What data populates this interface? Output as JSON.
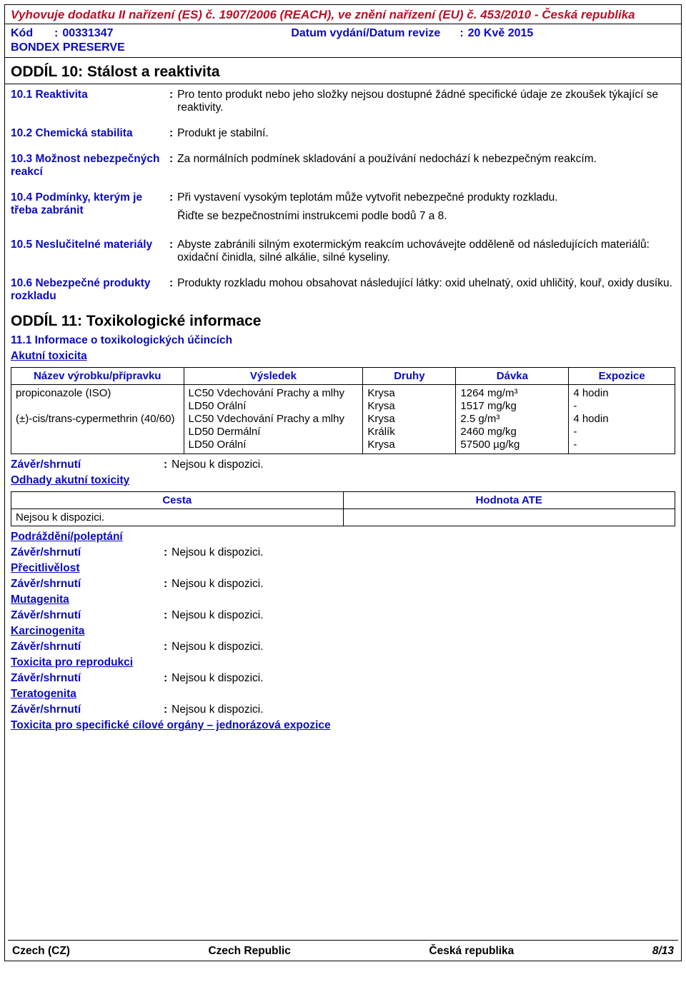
{
  "header": {
    "regulation": "Vyhovuje dodatku II nařízení (ES) č. 1907/2006 (REACH), ve znění nařízení (EU) č. 453/2010 - Česká republika",
    "code_label": "Kód",
    "code_value": "00331347",
    "date_label": "Datum vydání/Datum revize",
    "date_value": "20 Kvě 2015",
    "product": "BONDEX PRESERVE"
  },
  "section10": {
    "title": "ODDÍL 10: Stálost a reaktivita",
    "items": [
      {
        "label": "10.1 Reaktivita",
        "value": "Pro tento produkt nebo jeho složky nejsou dostupné žádné specifické údaje ze zkoušek týkající se reaktivity."
      },
      {
        "label": "10.2 Chemická stabilita",
        "value": "Produkt je stabilní."
      },
      {
        "label": "10.3 Možnost nebezpečných reakcí",
        "value": "Za normálních podmínek skladování a používání nedochází k nebezpečným reakcím."
      },
      {
        "label": "10.4 Podmínky, kterým je třeba zabránit",
        "value": "Při vystavení vysokým teplotám může vytvořit nebezpečné produkty rozkladu.",
        "value2": "Řiďte se bezpečnostními instrukcemi podle bodů 7 a 8."
      },
      {
        "label": "10.5 Neslučitelné materiály",
        "value": "Abyste zabránili silným exotermickým reakcím uchovávejte odděleně od následujících materiálů: oxidační činidla, silné alkálie, silné kyseliny."
      },
      {
        "label": "10.6 Nebezpečné produkty rozkladu",
        "value": "Produkty rozkladu mohou obsahovat následující látky: oxid uhelnatý, oxid uhličitý, kouř, oxidy dusíku."
      }
    ]
  },
  "section11": {
    "title": "ODDÍL 11: Toxikologické informace",
    "subtitle": "11.1 Informace o toxikologických účincích",
    "acute": "Akutní toxicita",
    "table_headers": [
      "Název výrobku/přípravku",
      "Výsledek",
      "Druhy",
      "Dávka",
      "Expozice"
    ],
    "table_rows": [
      [
        "propiconazole (ISO)",
        "LC50 Vdechování Prachy a mlhy",
        "Krysa",
        "1264 mg/m³",
        "4 hodin"
      ],
      [
        "",
        "LD50 Orální",
        "Krysa",
        "1517 mg/kg",
        "-"
      ],
      [
        "(±)-cis/trans-cypermethrin (40/60)",
        "LC50 Vdechování Prachy a mlhy",
        "Krysa",
        "2.5 g/m³",
        "4 hodin"
      ],
      [
        "",
        "LD50 Dermální",
        "Králík",
        "2460 mg/kg",
        "-"
      ],
      [
        "",
        "LD50 Orální",
        "Krysa",
        "57500 µg/kg",
        "-"
      ]
    ],
    "zaver_label": "Závěr/shrnutí",
    "nejsou": "Nejsou k dispozici.",
    "odhady": "Odhady akutní toxicity",
    "ate_headers": [
      "Cesta",
      "Hodnota ATE"
    ],
    "ate_cell": "Nejsou k dispozici.",
    "groups": [
      "Podráždění/poleptání",
      "Přecitlivělost",
      "Mutagenita",
      "Karcinogenita",
      "Toxicita pro reprodukci",
      "Teratogenita"
    ],
    "final_link": "Toxicita pro specifické cílové orgány – jednorázová expozice"
  },
  "footer": {
    "c1": "Czech (CZ)",
    "c2": "Czech Republic",
    "c3": "Česká republika",
    "page": "8/13"
  }
}
